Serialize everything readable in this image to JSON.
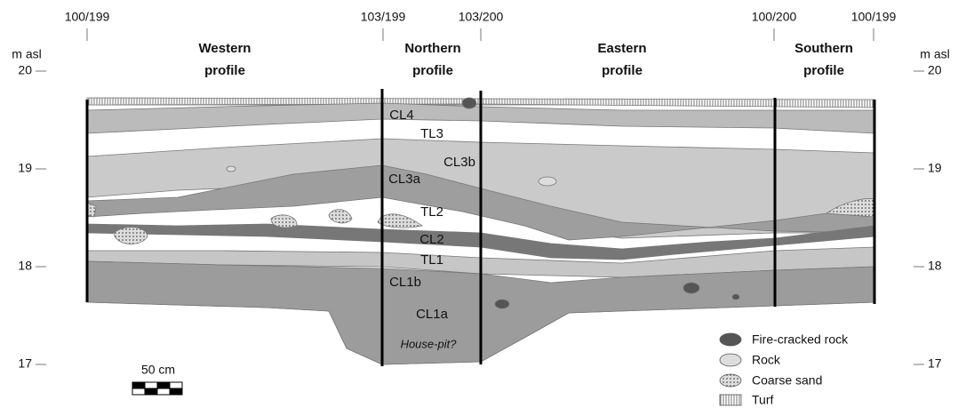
{
  "grid_points": [
    "100/199",
    "103/199",
    "103/200",
    "100/200",
    "100/199"
  ],
  "profiles": [
    [
      "Western",
      "profile"
    ],
    [
      "Northern",
      "profile"
    ],
    [
      "Eastern",
      "profile"
    ],
    [
      "Southern",
      "profile"
    ]
  ],
  "axis": {
    "unit": "m asl",
    "ticks": [
      20,
      19,
      18,
      17
    ]
  },
  "layers": [
    "CL4",
    "TL3",
    "CL3b",
    "CL3a",
    "TL2",
    "CL2",
    "TL1",
    "CL1b",
    "CL1a"
  ],
  "annotation": "House-pit?",
  "scale_bar": "50 cm",
  "legend": [
    "Fire-cracked rock",
    "Rock",
    "Coarse sand",
    "Turf"
  ]
}
